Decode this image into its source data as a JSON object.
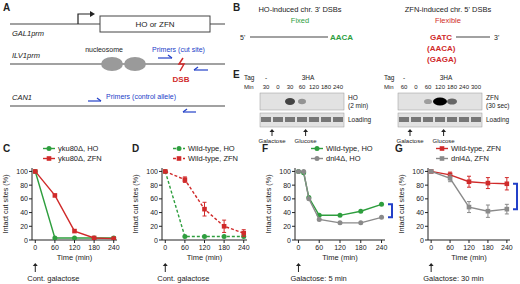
{
  "panel_labels": [
    "A",
    "B",
    "C",
    "D",
    "E",
    "F",
    "G"
  ],
  "diagram_a": {
    "promoter1": "GAL1prm",
    "gene": "HO or ZFN",
    "promoter2": "ILV1prm",
    "nucleosome": "nucleosome",
    "primers_cut": "Primers (cut site)",
    "dsb": "DSB",
    "locus": "CAN1",
    "primers_control": "Primers (control allele)"
  },
  "diagram_b": {
    "ho_title": "HO-induced chr. 3' DSBs",
    "ho_kind": "Fixed",
    "ho_seq": "AACA",
    "zfn_title": "ZFN-induced chr. 5' DSBs",
    "zfn_kind": "Flexible",
    "zfn_seqs": [
      "GATC",
      "(AACA)",
      "(GAGA)"
    ],
    "end5": "5'",
    "end3": "3'"
  },
  "blots_e": [
    {
      "tag_label": "Tag",
      "tags": [
        "-",
        "3HA"
      ],
      "min_label": "Min",
      "minutes": [
        30,
        0,
        30,
        60,
        120,
        180,
        240
      ],
      "protein": "HO",
      "exposure": "(2 min)",
      "loading": "Loading",
      "media": [
        "Galactose",
        "Glucose"
      ]
    },
    {
      "tag_label": "Tag",
      "tags": [
        "-",
        "3HA"
      ],
      "min_label": "Min",
      "minutes": [
        60,
        0,
        60,
        120,
        180,
        240,
        300
      ],
      "protein": "ZFN",
      "exposure": "(30 sec)",
      "loading": "Loading",
      "media": [
        "Galactose",
        "Glucose"
      ]
    }
  ],
  "chart_data": [
    {
      "type": "line",
      "x_label": "Time (min)",
      "y_label": "Intact cut sites (%)",
      "annotation": "Cont. galactose",
      "legend": "upper right",
      "x": [
        0,
        60,
        120,
        180,
        240
      ],
      "xlim": [
        -10,
        250
      ],
      "ylim": [
        0,
        105
      ],
      "xticks": [
        0,
        60,
        120,
        180,
        240
      ],
      "yticks": [
        0,
        20,
        40,
        60,
        80,
        100
      ],
      "series": [
        {
          "name": "yku80Δ, HO",
          "color": "#2e9e3e",
          "marker": "circle",
          "line_style": "solid",
          "values": [
            100,
            3,
            3,
            3,
            3
          ]
        },
        {
          "name": "yku80Δ, ZFN",
          "color": "#d02a2a",
          "marker": "square",
          "line_style": "solid",
          "values": [
            100,
            65,
            13,
            3,
            2
          ]
        }
      ]
    },
    {
      "type": "line",
      "x_label": "Time (min)",
      "y_label": "Intact cut sites (%)",
      "annotation": "Cont. galactose",
      "legend": "upper right",
      "x": [
        0,
        60,
        120,
        180,
        240
      ],
      "xlim": [
        -10,
        250
      ],
      "ylim": [
        0,
        105
      ],
      "xticks": [
        0,
        60,
        120,
        180,
        240
      ],
      "yticks": [
        0,
        20,
        40,
        60,
        80,
        100
      ],
      "series": [
        {
          "name": "Wild-type, HO",
          "color": "#2e9e3e",
          "marker": "circle",
          "line_style": "dashed",
          "values": [
            100,
            5,
            5,
            5,
            5
          ]
        },
        {
          "name": "Wild-type, ZFN",
          "color": "#d02a2a",
          "marker": "square",
          "line_style": "dashed",
          "values": [
            100,
            88,
            45,
            20,
            10
          ],
          "errors": [
            0,
            4,
            10,
            9,
            5
          ]
        }
      ]
    },
    {
      "type": "line",
      "x_label": "Time (min)",
      "y_label": "Intact cut sites (%)",
      "annotation": "Galactose: 5 min",
      "legend": "upper right",
      "x": [
        0,
        15,
        30,
        60,
        120,
        180,
        240
      ],
      "xlim": [
        -10,
        250
      ],
      "ylim": [
        0,
        105
      ],
      "xticks": [
        0,
        60,
        120,
        180,
        240
      ],
      "yticks": [
        0,
        20,
        40,
        60,
        80,
        100
      ],
      "series": [
        {
          "name": "Wild-type, HO",
          "color": "#2e9e3e",
          "marker": "circle",
          "line_style": "solid",
          "values": [
            100,
            98,
            62,
            36,
            36,
            42,
            52
          ]
        },
        {
          "name": "dnl4Δ, HO",
          "color": "#8a8a8a",
          "marker": "circle",
          "line_style": "solid",
          "values": [
            100,
            100,
            60,
            30,
            25,
            25,
            33
          ]
        }
      ]
    },
    {
      "type": "line",
      "x_label": "Time (min)",
      "y_label": "Intact cut sites (%)",
      "annotation": "Galactose: 30 min",
      "legend": "upper right",
      "x": [
        0,
        60,
        120,
        180,
        240
      ],
      "xlim": [
        -10,
        250
      ],
      "ylim": [
        0,
        105
      ],
      "xticks": [
        0,
        60,
        120,
        180,
        240
      ],
      "yticks": [
        0,
        20,
        40,
        60,
        80,
        100
      ],
      "series": [
        {
          "name": "Wild-type, ZFN",
          "color": "#d02a2a",
          "marker": "square",
          "line_style": "solid",
          "values": [
            100,
            95,
            85,
            83,
            82
          ],
          "errors": [
            0,
            4,
            8,
            8,
            9
          ]
        },
        {
          "name": "dnl4Δ, ZFN",
          "color": "#8a8a8a",
          "marker": "square",
          "line_style": "solid",
          "values": [
            100,
            90,
            48,
            42,
            45
          ],
          "errors": [
            0,
            5,
            8,
            9,
            7
          ]
        }
      ]
    }
  ]
}
